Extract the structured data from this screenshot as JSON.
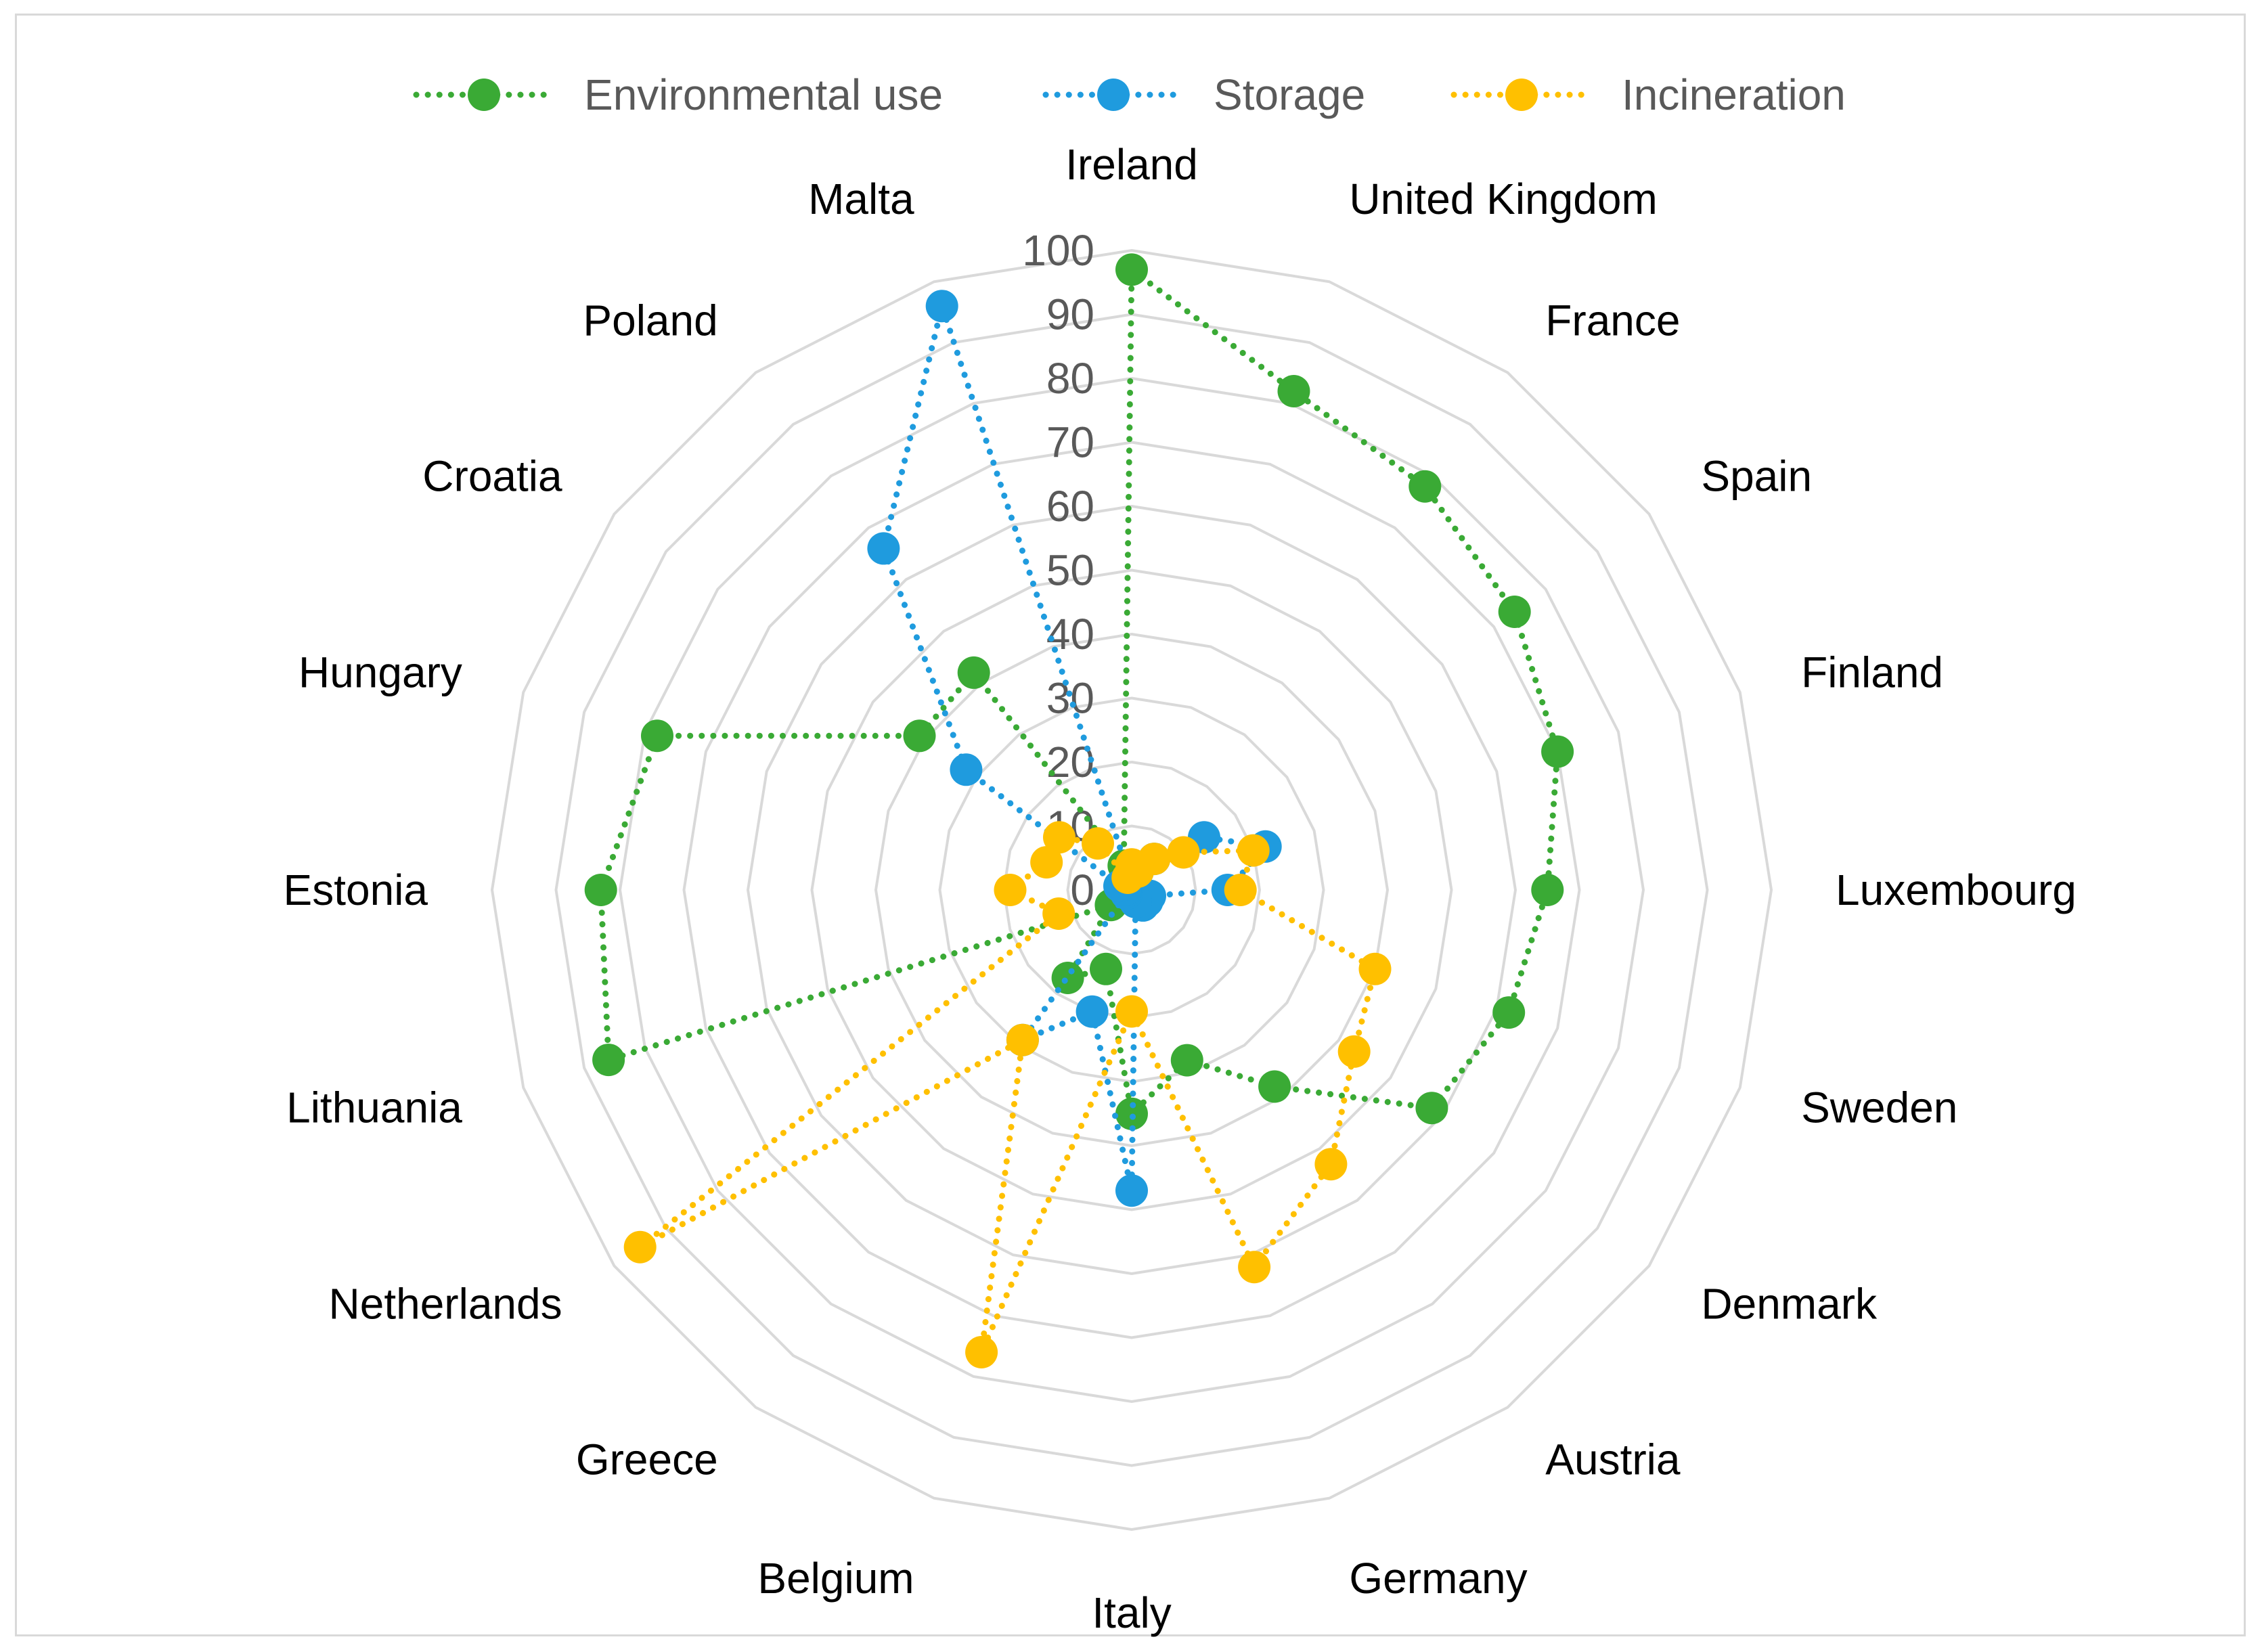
{
  "chart_data": {
    "type": "radar",
    "legend_position": "top",
    "grid": true,
    "rmax": 100,
    "ticks": [
      "0",
      "10",
      "20",
      "30",
      "40",
      "50",
      "60",
      "70",
      "80",
      "90",
      "100"
    ],
    "categories": [
      "Ireland",
      "United Kingdom",
      "France",
      "Spain",
      "Finland",
      "Luxembourg",
      "Sweden",
      "Denmark",
      "Austria",
      "Germany",
      "Italy",
      "Belgium",
      "Greece",
      "Netherlands",
      "Lithuania",
      "Estonia",
      "Hungary",
      "Croatia",
      "Poland",
      "Malta"
    ],
    "series": [
      {
        "name": "Environmental use",
        "color": "#3aaa35",
        "values": [
          97,
          82,
          78,
          74,
          70,
          65,
          62,
          58,
          38,
          28,
          35,
          13,
          17,
          4,
          86,
          83,
          78,
          41,
          42,
          4
        ]
      },
      {
        "name": "Storage",
        "color": "#1f9bde",
        "values": [
          1,
          3,
          6,
          14,
          22,
          15,
          3,
          3,
          3,
          2,
          47,
          20,
          29,
          1,
          1,
          1,
          2,
          32,
          66,
          96
        ]
      },
      {
        "name": "Incineration",
        "color": "#ffc000",
        "values": [
          4,
          3,
          6,
          10,
          20,
          17,
          40,
          43,
          53,
          62,
          19,
          76,
          29,
          95,
          12,
          19,
          14,
          14,
          9,
          2
        ]
      }
    ]
  }
}
